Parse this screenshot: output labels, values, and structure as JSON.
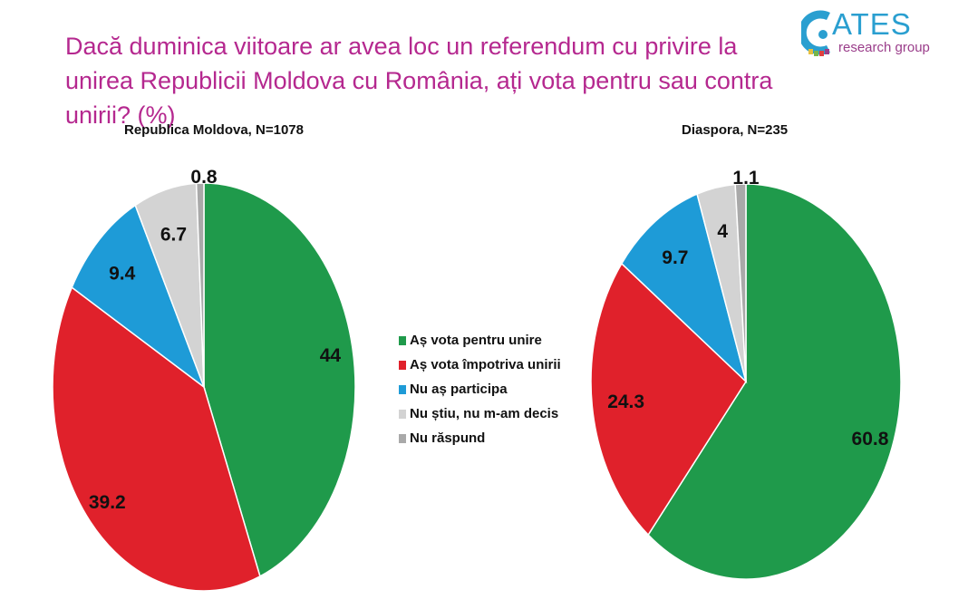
{
  "title": "Dacă duminica viitoare ar avea loc un referendum cu privire la unirea Republicii Moldova cu România, ați vota pentru sau contra unirii? (%)",
  "logo": {
    "name": "ATES",
    "subtitle": "research group"
  },
  "chart_data": {
    "type": "pie",
    "legend_placement": "center",
    "categories": [
      "Aș vota pentru unire",
      "Aș vota împotriva unirii",
      "Nu aș participa",
      "Nu știu, nu m-am decis",
      "Nu răspund"
    ],
    "colors": [
      "#1f9a4b",
      "#e0212b",
      "#1e9bd7",
      "#d3d3d3",
      "#a9a9a9"
    ],
    "charts": [
      {
        "title": "Republica Moldova, N=1078",
        "values": [
          44,
          39.2,
          9.4,
          6.7,
          0.8
        ],
        "labels": [
          "44",
          "39.2",
          "9.4",
          "6.7",
          "0.8"
        ]
      },
      {
        "title": "Diaspora, N=235",
        "values": [
          60.8,
          24.3,
          9.7,
          4,
          1.1
        ],
        "labels": [
          "60.8",
          "24.3",
          "9.7",
          "4",
          "1.1"
        ]
      }
    ]
  }
}
